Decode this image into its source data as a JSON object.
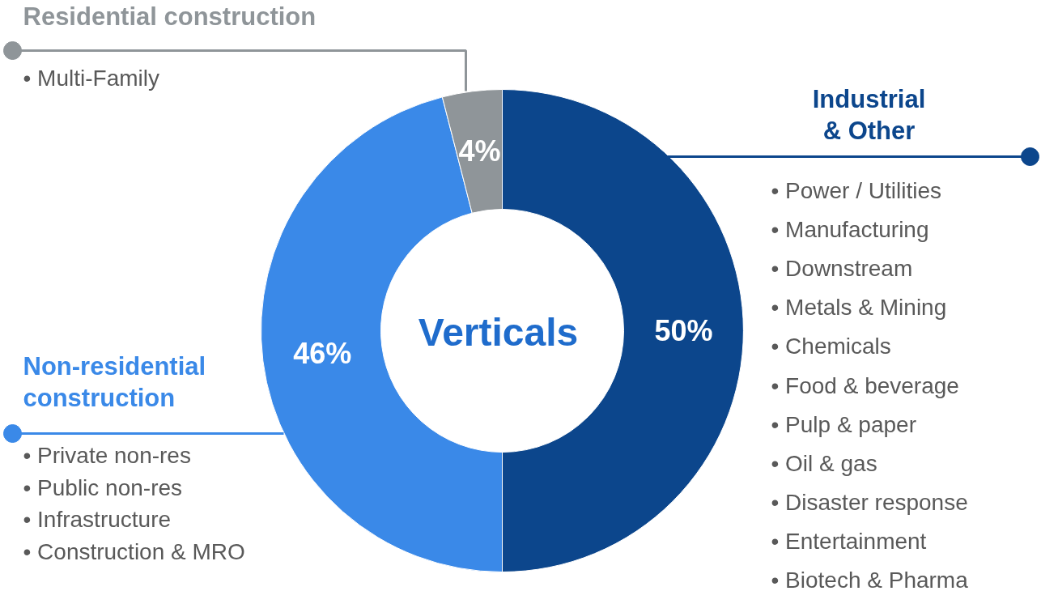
{
  "chart_data": {
    "type": "donut",
    "title": "Verticals",
    "categories": [
      "Industrial & Other",
      "Non-residential construction",
      "Residential construction"
    ],
    "values": [
      50,
      46,
      4
    ],
    "colors": [
      "#0c468c",
      "#3a89e8",
      "#8f9599"
    ],
    "value_labels": [
      "50%",
      "46%",
      "4%"
    ],
    "annotations": [
      "•  Multi-Family",
      "•  Private non-res",
      "•  Public non-res",
      "•  Infrastructure",
      "•  Construction & MRO",
      "•  Power / Utilities",
      "•  Manufacturing",
      "•  Downstream",
      "•  Metals & Mining",
      "•  Chemicals",
      "•  Food & beverage",
      "•  Pulp & paper",
      "•  Oil & gas",
      "•  Disaster response",
      "•  Entertainment",
      "•  Biotech & Pharma"
    ]
  }
}
